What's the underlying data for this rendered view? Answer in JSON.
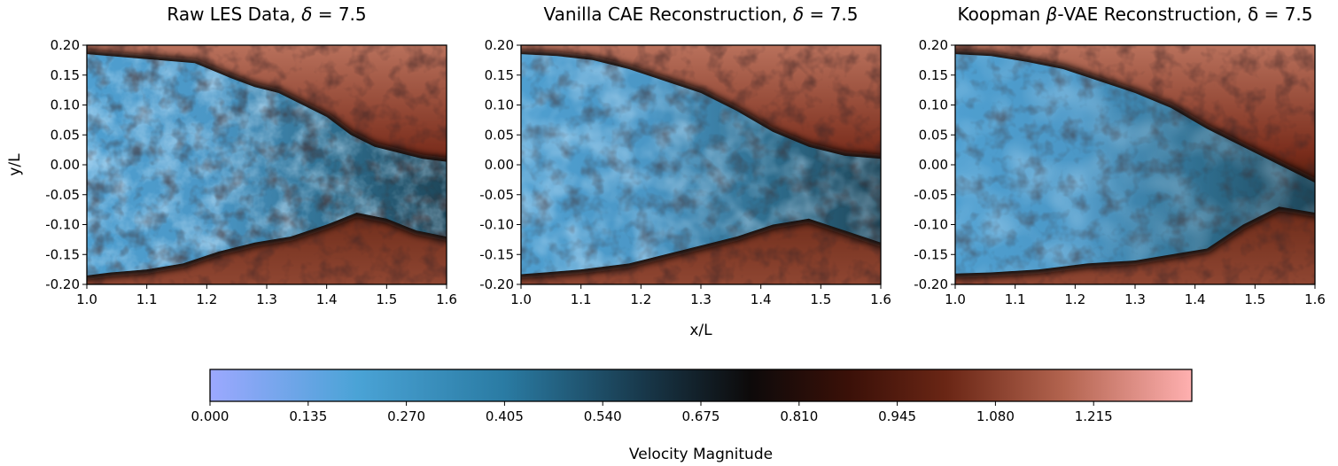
{
  "chart_data": {
    "type": "heatmap",
    "panels": [
      {
        "title_main": "Raw LES Data, ",
        "title_symbol": "δ",
        "title_tail": " = 7.5",
        "variant": "raw"
      },
      {
        "title_main": "Vanilla CAE Reconstruction, ",
        "title_symbol": "δ",
        "title_tail": " = 7.5",
        "variant": "cae"
      },
      {
        "title_main": "Koopman ",
        "title_symbol": "β",
        "title_tail": "-VAE Reconstruction, δ = 7.5",
        "variant": "vae"
      }
    ],
    "xlabel": "x/L",
    "ylabel": "y/L",
    "xlim": [
      1.0,
      1.6
    ],
    "ylim": [
      -0.2,
      0.2
    ],
    "xticks": [
      "1.0",
      "1.1",
      "1.2",
      "1.3",
      "1.4",
      "1.5",
      "1.6"
    ],
    "yticks": [
      "0.20",
      "0.15",
      "0.10",
      "0.05",
      "0.00",
      "-0.05",
      "-0.10",
      "-0.15",
      "-0.20"
    ],
    "colorbar": {
      "label": "Velocity Magnitude",
      "range": [
        0.0,
        1.35
      ],
      "ticks": [
        "0.000",
        "0.135",
        "0.270",
        "0.405",
        "0.540",
        "0.675",
        "0.810",
        "0.945",
        "1.080",
        "1.215"
      ],
      "colors": [
        "#9ca8ff",
        "#4aa3d6",
        "#1b3a4d",
        "#0d0a0a",
        "#5a1c0e",
        "#b3644f",
        "#ffb0b0"
      ]
    }
  }
}
